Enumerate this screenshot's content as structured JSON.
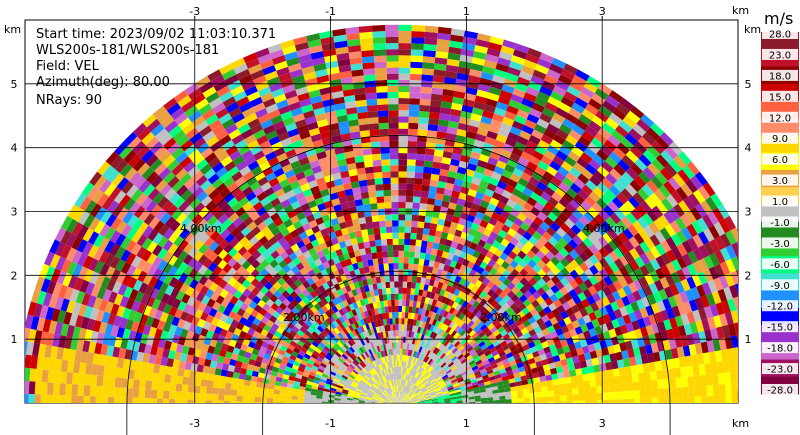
{
  "info": {
    "start_time": "Start time: 2023/09/02 11:03:10.371",
    "device": "WLS200s-181/WLS200s-181",
    "field": "Field: VEL",
    "azimuth": "Azimuth(deg): 80.00",
    "nrays": "NRays: 90"
  },
  "axes": {
    "unit_label": "km",
    "x_ticks": [
      "-3",
      "-1",
      "1",
      "3"
    ],
    "y_ticks": [
      "1",
      "2",
      "3",
      "4",
      "5"
    ],
    "x_tick_values": [
      -3,
      -1,
      1,
      3
    ],
    "y_tick_values": [
      1,
      2,
      3,
      4,
      5
    ],
    "x_range": [
      -5.5,
      5.0
    ],
    "y_range": [
      0,
      6.0
    ],
    "grid": true
  },
  "range_rings": [
    "2.00km",
    "2.00km",
    "4.00km",
    "4.00km"
  ],
  "colorbar": {
    "unit": "m/s",
    "labels": [
      "28.0",
      "23.0",
      "18.0",
      "15.0",
      "12.0",
      "9.0",
      "6.0",
      "3.0",
      "1.0",
      "-1.0",
      "-3.0",
      "-6.0",
      "-9.0",
      "-12.0",
      "-15.0",
      "-18.0",
      "-23.0",
      "-28.0"
    ],
    "colors": [
      "#8b1a2b",
      "#c0102a",
      "#8b0000",
      "#cc0000",
      "#ff6040",
      "#ff8c69",
      "#ffd700",
      "#ffff00",
      "#e8a040",
      "#ffd050",
      "#c0c0c0",
      "#228b22",
      "#32cd32",
      "#00ff7f",
      "#40e0d0",
      "#1e90ff",
      "#0000ff",
      "#9932cc",
      "#cc66cc",
      "#a01060",
      "#800040"
    ]
  }
}
